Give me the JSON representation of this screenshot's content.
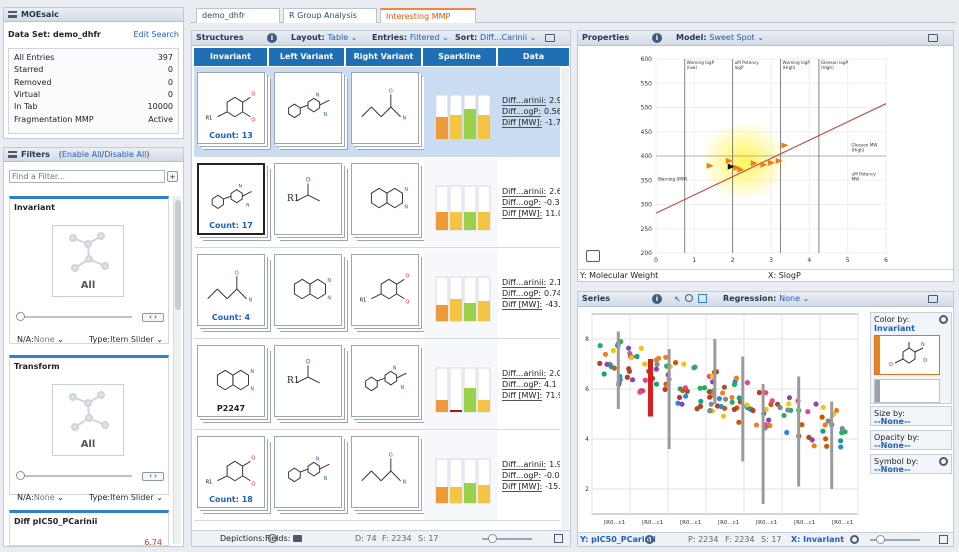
{
  "moesaic": {
    "title": "MOEsaic",
    "dataset_label": "Data Set: demo_dhfr",
    "edit_search": "Edit Search",
    "stats": [
      {
        "label": "All Entries",
        "value": "397"
      },
      {
        "label": "Starred",
        "value": "0"
      },
      {
        "label": "Removed",
        "value": "0"
      },
      {
        "label": "Virtual",
        "value": "0"
      },
      {
        "label": "In Tab",
        "value": "10000"
      },
      {
        "label": "Fragmentation MMP",
        "value": "Active"
      }
    ]
  },
  "filters": {
    "title": "Filters",
    "enable_all": "Enable All",
    "separator": "/",
    "disable_all": "Disable All",
    "find_placeholder": "Find a Filter...",
    "add": "+",
    "invariant": {
      "title": "Invariant",
      "all": "All",
      "na_label": "N/A:",
      "na_value": "None",
      "type_label": "Type:",
      "type_value": "Item Slider"
    },
    "transform": {
      "title": "Transform",
      "all": "All",
      "na_label": "N/A:",
      "na_value": "None",
      "type_label": "Type:",
      "type_value": "Item Slider"
    },
    "diff": {
      "title": "Diff pIC50_PCarinii",
      "value": "6.74"
    }
  },
  "tabs": [
    {
      "label": "demo_dhfr",
      "active": false
    },
    {
      "label": "R Group Analysis",
      "active": false
    },
    {
      "label": "Interesting MMP",
      "active": true
    }
  ],
  "structures": {
    "title": "Structures",
    "layout_label": "Layout:",
    "layout_value": "Table",
    "entries_label": "Entries:",
    "entries_value": "Filtered",
    "sort_label": "Sort:",
    "sort_value": "Diff...Carinii",
    "columns": [
      "Invariant",
      "Left Variant",
      "Right Variant",
      "Sparkline",
      "Data"
    ],
    "rows": [
      {
        "count": "Count: 13",
        "left_label": "",
        "data": [
          [
            "Diff...arinii:",
            "2.93"
          ],
          [
            "Diff...ogP:",
            "0.56"
          ],
          [
            "Diff [MW]:",
            "-1.7"
          ]
        ],
        "spark": [
          0.55,
          0.6,
          0.75,
          0.6
        ]
      },
      {
        "count": "Count: 17",
        "left_label": "R1",
        "data": [
          [
            "Diff...arinii:",
            "2.63"
          ],
          [
            "Diff...ogP:",
            "-0.35"
          ],
          [
            "Diff [MW]:",
            "11.0"
          ]
        ],
        "spark": [
          0.45,
          0.45,
          0.45,
          0.45
        ]
      },
      {
        "count": "Count: 4",
        "left_label": "",
        "data": [
          [
            "Diff...arinii:",
            "2.1"
          ],
          [
            "Diff...ogP:",
            "0.74"
          ],
          [
            "Diff [MW]:",
            "-43.5"
          ]
        ],
        "spark": [
          0.4,
          0.55,
          0.45,
          0.5
        ]
      },
      {
        "count": "P2247",
        "left_label": "R1",
        "data": [
          [
            "Diff...arinii:",
            "2.0"
          ],
          [
            "Diff...ogP:",
            "4.1"
          ],
          [
            "Diff [MW]:",
            "71.9"
          ]
        ],
        "spark": [
          0.3,
          0.05,
          0.6,
          0.3
        ]
      },
      {
        "count": "Count: 18",
        "left_label": "",
        "data": [
          [
            "Diff...arinii:",
            "1.98"
          ],
          [
            "Diff...ogP:",
            "-0.09"
          ],
          [
            "Diff [MW]:",
            "-15.7"
          ]
        ],
        "spark": [
          0.4,
          0.4,
          0.5,
          0.45
        ]
      }
    ],
    "footer": {
      "depictions": "Depictions:",
      "fields": "Fields:",
      "d": "D: 74",
      "f": "F: 2234",
      "s": "S: 17"
    }
  },
  "properties": {
    "title": "Properties",
    "model_label": "Model:",
    "model_value": "Sweet Spot",
    "y_axis": "Y: Molecular Weight",
    "x_axis": "X: SlogP",
    "annotations": [
      "Warning logP (low)",
      "uM Potency logP",
      "Warning logP (High)",
      "Gleeson logP (High)",
      "Gleeson MW (High)",
      "uM Potency MW",
      "Warning (MW)"
    ]
  },
  "series": {
    "title": "Series",
    "regression_label": "Regression:",
    "regression_value": "None",
    "color_by_label": "Color by:",
    "color_by_value": "Invariant",
    "size_by_label": "Size by:",
    "size_by_value": "--None--",
    "opacity_by_label": "Opacity by:",
    "opacity_by_value": "--None--",
    "symbol_by_label": "Symbol by:",
    "symbol_by_value": "--None--",
    "x_ticks": [
      "[R0...c1",
      "[R0...c1",
      "[R0...c1",
      "[R0...c1",
      "[R0...c1",
      "[R0...c1",
      "[R0...c1"
    ],
    "footer": {
      "y": "Y: pIC50_PCarinii",
      "p": "P: 2234",
      "f": "F: 2234",
      "s": "S: 17",
      "x": "X: Invariant"
    }
  },
  "chart_data": [
    {
      "type": "scatter",
      "title": "",
      "xlabel": "SlogP",
      "ylabel": "Molecular Weight",
      "xlim": [
        0,
        6
      ],
      "ylim": [
        200,
        600
      ],
      "x_ticks": [
        0,
        1,
        2,
        3,
        4,
        5,
        6
      ],
      "y_ticks": [
        200,
        250,
        300,
        350,
        400,
        450,
        500,
        550,
        600
      ],
      "vertical_lines": [
        0.75,
        2.0,
        3.25,
        4.25
      ],
      "trend": {
        "x": [
          0,
          6
        ],
        "y": [
          282,
          508
        ]
      },
      "points": {
        "x": [
          1.95,
          2.1,
          2.2,
          2.55,
          2.8,
          3.0,
          3.2,
          3.35,
          1.4,
          1.9
        ],
        "y": [
          378,
          376,
          372,
          385,
          382,
          386,
          390,
          422,
          380,
          390
        ]
      }
    },
    {
      "type": "scatter",
      "title": "",
      "xlabel": "Invariant",
      "ylabel": "pIC50_PCarinii",
      "ylim": [
        1,
        9
      ],
      "y_ticks": [
        2,
        4,
        6,
        8
      ],
      "grid": true
    }
  ]
}
